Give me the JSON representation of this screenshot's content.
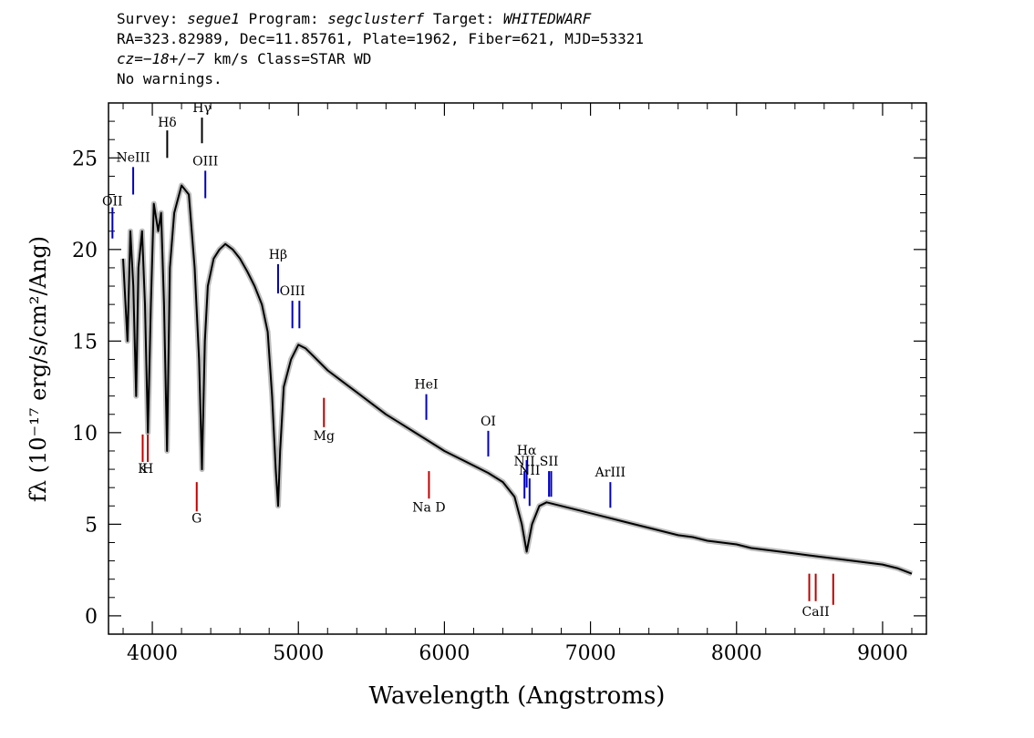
{
  "header": {
    "survey_label": "Survey:",
    "survey": "segue1",
    "program_label": "Program:",
    "program": "segclusterf",
    "target_label": "Target:",
    "target": "WHITEDWARF",
    "line2": "RA=323.82989, Dec=11.85761, Plate=1962, Fiber=621, MJD=53321",
    "cz": "cz=−18+/−7",
    "cz_rest": " km/s Class=STAR WD",
    "warnings": "No warnings."
  },
  "chart_data": {
    "type": "line",
    "title": "",
    "xlabel": "Wavelength (Angstroms)",
    "ylabel": "fλ (10⁻¹⁷ erg/s/cm²/Ang)",
    "xlim": [
      3700,
      9300
    ],
    "ylim": [
      -1,
      28
    ],
    "x_ticks": [
      4000,
      5000,
      6000,
      7000,
      8000,
      9000
    ],
    "x_tick_labels": [
      "4000",
      "5000",
      "6000",
      "7000",
      "8000",
      "9000"
    ],
    "y_ticks": [
      0,
      5,
      10,
      15,
      20,
      25
    ],
    "y_tick_labels": [
      "0",
      "5",
      "10",
      "15",
      "20",
      "25"
    ],
    "grid": false,
    "series": [
      {
        "color": "#000000",
        "x": [
          3800,
          3830,
          3850,
          3870,
          3889,
          3905,
          3930,
          3950,
          3970,
          3990,
          4010,
          4040,
          4060,
          4080,
          4101,
          4120,
          4150,
          4200,
          4250,
          4290,
          4320,
          4340,
          4360,
          4380,
          4420,
          4460,
          4500,
          4550,
          4600,
          4650,
          4700,
          4750,
          4790,
          4820,
          4845,
          4861,
          4875,
          4900,
          4950,
          5000,
          5050,
          5100,
          5200,
          5300,
          5400,
          5500,
          5600,
          5700,
          5800,
          5900,
          6000,
          6100,
          6200,
          6300,
          6400,
          6480,
          6530,
          6563,
          6600,
          6650,
          6700,
          6800,
          6900,
          7000,
          7100,
          7200,
          7300,
          7400,
          7500,
          7600,
          7700,
          7800,
          7900,
          8000,
          8100,
          8200,
          8300,
          8400,
          8500,
          8600,
          8700,
          8800,
          8900,
          9000,
          9100,
          9200
        ],
        "y": [
          19.5,
          15,
          21,
          18,
          12,
          19,
          21,
          17,
          10,
          17,
          22.5,
          21,
          22,
          17,
          9,
          19,
          22,
          23.5,
          23,
          19,
          14,
          8,
          15,
          18,
          19.5,
          20,
          20.3,
          20,
          19.5,
          18.8,
          18,
          17,
          15.5,
          12,
          8,
          6,
          9,
          12.5,
          14,
          14.8,
          14.6,
          14.2,
          13.4,
          12.8,
          12.2,
          11.6,
          11,
          10.5,
          10,
          9.5,
          9,
          8.6,
          8.2,
          7.8,
          7.3,
          6.5,
          5,
          3.5,
          5,
          6,
          6.2,
          6,
          5.8,
          5.6,
          5.4,
          5.2,
          5,
          4.8,
          4.6,
          4.4,
          4.3,
          4.1,
          4,
          3.9,
          3.7,
          3.6,
          3.5,
          3.4,
          3.3,
          3.2,
          3.1,
          3,
          2.9,
          2.8,
          2.6,
          2.3
        ]
      }
    ],
    "emission_lines": [
      {
        "label": "OII",
        "x": 3727,
        "y_top": 22.3,
        "y_bottom": 20.6,
        "label_y": 22.4,
        "color": "#0000c0"
      },
      {
        "label": "NeIII",
        "x": 3869,
        "y_top": 24.5,
        "y_bottom": 23,
        "label_y": 24.8,
        "color": "#0000c0"
      },
      {
        "label": "Hδ",
        "x": 4102,
        "y_top": 26.5,
        "y_bottom": 25,
        "label_y": 26.7,
        "color": "#000000"
      },
      {
        "label": "Hγ",
        "x": 4340,
        "y_top": 27.2,
        "y_bottom": 25.8,
        "label_y": 27.5,
        "color": "#000000"
      },
      {
        "label": "OIII",
        "x": 4363,
        "y_top": 24.3,
        "y_bottom": 22.8,
        "label_y": 24.6,
        "color": "#0000c0"
      },
      {
        "label": "Hβ",
        "x": 4861,
        "y_top": 19.2,
        "y_bottom": 17.6,
        "label_y": 19.5,
        "color": "#0000c0"
      },
      {
        "label": "OIII",
        "x": 4959,
        "y_top": 17.2,
        "y_bottom": 15.7,
        "label_y": 17.5,
        "color": "#0000c0"
      },
      {
        "label": "",
        "x": 5007,
        "y_top": 17.2,
        "y_bottom": 15.7,
        "label_y": 17.5,
        "color": "#0000c0"
      },
      {
        "label": "HeI",
        "x": 5876,
        "y_top": 12.1,
        "y_bottom": 10.7,
        "label_y": 12.4,
        "color": "#0000c0"
      },
      {
        "label": "OI",
        "x": 6300,
        "y_top": 10.1,
        "y_bottom": 8.7,
        "label_y": 10.4,
        "color": "#0000c0"
      },
      {
        "label": "NII",
        "x": 6548,
        "y_top": 7.9,
        "y_bottom": 6.4,
        "label_y": 8.2,
        "color": "#0000c0"
      },
      {
        "label": "Hα",
        "x": 6563,
        "y_top": 8.5,
        "y_bottom": 7.0,
        "label_y": 8.8,
        "color": "#0000c0"
      },
      {
        "label": "NII",
        "x": 6583,
        "y_top": 7.5,
        "y_bottom": 6.0,
        "label_y": 7.7,
        "color": "#0000c0"
      },
      {
        "label": "SII",
        "x": 6716,
        "y_top": 7.9,
        "y_bottom": 6.5,
        "label_y": 8.2,
        "color": "#0000c0"
      },
      {
        "label": "",
        "x": 6731,
        "y_top": 7.9,
        "y_bottom": 6.5,
        "label_y": 8.2,
        "color": "#0000c0"
      },
      {
        "label": "ArIII",
        "x": 7136,
        "y_top": 7.3,
        "y_bottom": 5.9,
        "label_y": 7.6,
        "color": "#0000c0"
      }
    ],
    "absorption_lines": [
      {
        "label": "K",
        "x": 3934,
        "y_top": 9.9,
        "y_bottom": 8.4,
        "label_y": 7.8,
        "color": "#c00000"
      },
      {
        "label": "H",
        "x": 3969,
        "y_top": 9.9,
        "y_bottom": 8.4,
        "label_y": 7.8,
        "color": "#c00000"
      },
      {
        "label": "G",
        "x": 4304,
        "y_top": 7.3,
        "y_bottom": 5.7,
        "label_y": 5.1,
        "color": "#c00000"
      },
      {
        "label": "Mg",
        "x": 5175,
        "y_top": 11.9,
        "y_bottom": 10.3,
        "label_y": 9.6,
        "color": "#c00000"
      },
      {
        "label": "Na D",
        "x": 5894,
        "y_top": 7.9,
        "y_bottom": 6.4,
        "label_y": 5.7,
        "color": "#c00000"
      },
      {
        "label": "",
        "x": 8498,
        "y_top": 2.3,
        "y_bottom": 0.8,
        "label_y": 0,
        "color": "#c00000"
      },
      {
        "label": "CaII",
        "x": 8542,
        "y_top": 2.3,
        "y_bottom": 0.8,
        "label_y": 0,
        "color": "#c00000"
      },
      {
        "label": "",
        "x": 8662,
        "y_top": 2.3,
        "y_bottom": 0.6,
        "label_y": 0,
        "color": "#c00000"
      }
    ]
  }
}
